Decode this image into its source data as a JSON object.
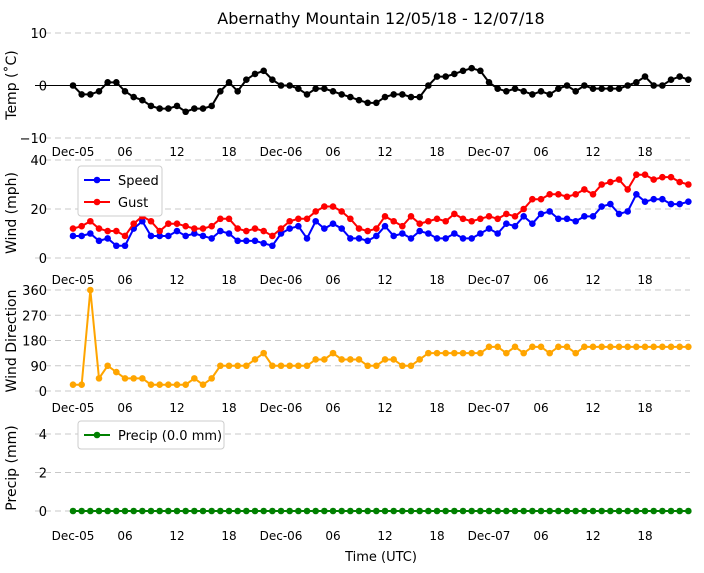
{
  "chart_data": [
    {
      "type": "line",
      "title": "Abernathy Mountain 12/05/18 - 12/07/18",
      "ylabel": "Temp ($^\\circ$C)",
      "ylabel_display": "Temp (˚C)",
      "ylim": [
        -10,
        10
      ],
      "yticks": [
        "10",
        "0",
        "−10"
      ],
      "grid": true,
      "xticks": [
        "Dec-05",
        "06",
        "12",
        "18",
        "Dec-06",
        "06",
        "12",
        "18",
        "Dec-07",
        "06",
        "12",
        "18"
      ],
      "series": [
        {
          "color": "#000000",
          "values": [
            0,
            -1.7,
            -1.7,
            -1.1,
            0.6,
            0.6,
            -1.1,
            -2.2,
            -2.8,
            -3.9,
            -4.4,
            -4.4,
            -3.9,
            -5.0,
            -4.4,
            -4.4,
            -3.9,
            -1.1,
            0.6,
            -1.1,
            1.1,
            2.2,
            2.8,
            1.1,
            0,
            0,
            -0.6,
            -1.7,
            -0.6,
            -0.6,
            -1.1,
            -1.7,
            -2.2,
            -2.8,
            -3.3,
            -3.3,
            -2.2,
            -1.7,
            -1.7,
            -2.2,
            -2.2,
            0,
            1.7,
            1.7,
            2.2,
            2.8,
            3.3,
            2.8,
            0.6,
            -0.6,
            -1.1,
            -0.6,
            -1.1,
            -1.7,
            -1.1,
            -1.7,
            -0.6,
            0,
            -1.1,
            0,
            -0.6,
            -0.6,
            -0.6,
            -0.6,
            0,
            0.6,
            1.7,
            0,
            0,
            1.1,
            1.7,
            1.1
          ]
        }
      ]
    },
    {
      "type": "line",
      "ylabel": "Wind (mph)",
      "ylim": [
        0,
        40
      ],
      "yticks": [
        "40",
        "20",
        "0"
      ],
      "grid": true,
      "legend": "top-left",
      "xticks": [
        "Dec-05",
        "06",
        "12",
        "18",
        "Dec-06",
        "06",
        "12",
        "18",
        "Dec-07",
        "06",
        "12",
        "18"
      ],
      "series": [
        {
          "name": "Speed",
          "color": "#0000ff",
          "values": [
            9,
            9,
            10,
            7,
            8,
            5,
            5,
            12,
            15,
            9,
            9,
            9,
            11,
            9,
            10,
            9,
            8,
            11,
            10,
            7,
            7,
            7,
            6,
            5,
            10,
            12,
            13,
            8,
            15,
            12,
            14,
            12,
            8,
            8,
            7,
            9,
            13,
            9,
            10,
            8,
            11,
            10,
            8,
            8,
            10,
            8,
            8,
            10,
            12,
            10,
            14,
            13,
            17,
            14,
            18,
            19,
            16,
            16,
            15,
            17,
            17,
            21,
            22,
            18,
            19,
            26,
            23,
            24,
            24,
            22,
            22,
            23
          ]
        },
        {
          "name": "Gust",
          "color": "#ff0000",
          "values": [
            12,
            13,
            15,
            12,
            11,
            11,
            9,
            14,
            17,
            15,
            11,
            14,
            14,
            13,
            12,
            12,
            13,
            16,
            16,
            12,
            11,
            12,
            11,
            9,
            12,
            15,
            16,
            16,
            19,
            21,
            21,
            19,
            16,
            12,
            11,
            12,
            17,
            15,
            13,
            17,
            14,
            15,
            16,
            15,
            18,
            16,
            15,
            16,
            17,
            16,
            18,
            17,
            20,
            24,
            24,
            26,
            26,
            25,
            26,
            28,
            26,
            30,
            31,
            32,
            28,
            34,
            34,
            32,
            33,
            33,
            31,
            30
          ]
        }
      ]
    },
    {
      "type": "line",
      "ylabel": "Wind Direction",
      "ylim": [
        0,
        360
      ],
      "yticks": [
        "360",
        "270",
        "180",
        "90",
        "0"
      ],
      "grid": true,
      "xticks": [
        "Dec-05",
        "06",
        "12",
        "18",
        "Dec-06",
        "06",
        "12",
        "18",
        "Dec-07",
        "06",
        "12",
        "18"
      ],
      "series": [
        {
          "color": "#ffa500",
          "values": [
            22.5,
            22.5,
            360,
            45,
            90,
            67.5,
            45,
            45,
            45,
            22.5,
            22.5,
            22.5,
            22.5,
            22.5,
            45,
            22.5,
            45,
            90,
            90,
            90,
            90,
            112.5,
            135,
            90,
            90,
            90,
            90,
            90,
            112.5,
            112.5,
            135,
            112.5,
            112.5,
            112.5,
            90,
            90,
            112.5,
            112.5,
            90,
            90,
            112.5,
            135,
            135,
            135,
            135,
            135,
            135,
            135,
            157.5,
            157.5,
            135,
            157.5,
            135,
            157.5,
            157.5,
            135,
            157.5,
            157.5,
            135,
            157.5,
            157.5,
            157.5,
            157.5,
            157.5,
            157.5,
            157.5,
            157.5,
            157.5,
            157.5,
            157.5,
            157.5,
            157.5
          ]
        }
      ]
    },
    {
      "type": "line",
      "ylabel": "Precip (mm)",
      "xlabel": "Time (UTC)",
      "ylim": [
        0,
        5
      ],
      "yticks": [
        "4",
        "2",
        "0"
      ],
      "grid": true,
      "legend": "top-left",
      "xticks": [
        "Dec-05",
        "06",
        "12",
        "18",
        "Dec-06",
        "06",
        "12",
        "18",
        "Dec-07",
        "06",
        "12",
        "18"
      ],
      "series": [
        {
          "name": "Precip (0.0 mm)",
          "color": "#008000",
          "values": [
            0,
            0,
            0,
            0,
            0,
            0,
            0,
            0,
            0,
            0,
            0,
            0,
            0,
            0,
            0,
            0,
            0,
            0,
            0,
            0,
            0,
            0,
            0,
            0,
            0,
            0,
            0,
            0,
            0,
            0,
            0,
            0,
            0,
            0,
            0,
            0,
            0,
            0,
            0,
            0,
            0,
            0,
            0,
            0,
            0,
            0,
            0,
            0,
            0,
            0,
            0,
            0,
            0,
            0,
            0,
            0,
            0,
            0,
            0,
            0,
            0,
            0,
            0,
            0,
            0,
            0,
            0,
            0,
            0,
            0,
            0,
            0
          ]
        }
      ]
    }
  ]
}
